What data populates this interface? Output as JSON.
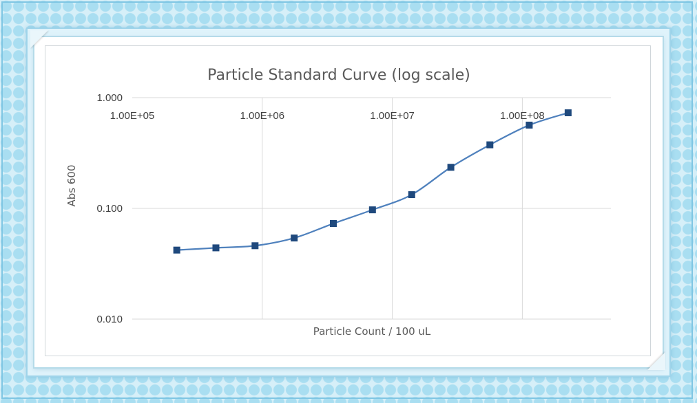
{
  "chart_data": {
    "type": "line",
    "title": "Particle Standard Curve  (log scale)",
    "xlabel": "Particle Count / 100 uL",
    "ylabel": "Abs 600",
    "x_scale": "log",
    "y_scale": "log",
    "xlim": [
      100000,
      480000000
    ],
    "ylim": [
      0.01,
      1.0
    ],
    "x_ticks": [
      100000,
      1000000,
      10000000,
      100000000
    ],
    "x_tick_labels": [
      "1.00E+05",
      "1.00E+06",
      "1.00E+07",
      "1.00E+08"
    ],
    "x_tick_position": "top",
    "y_ticks": [
      0.01,
      0.1,
      1.0
    ],
    "y_tick_labels": [
      "0.010",
      "0.100",
      "1.000"
    ],
    "grid": true,
    "legend": "none",
    "colors": {
      "line": "#4f81bd",
      "marker": "#1f497d",
      "grid": "#d9d9d9"
    },
    "series": [
      {
        "x": [
          220000,
          440000,
          880000,
          1760000,
          3520000,
          7040000,
          14100000,
          28200000,
          56300000,
          113000000,
          225000000
        ],
        "y": [
          0.042,
          0.044,
          0.046,
          0.054,
          0.073,
          0.097,
          0.133,
          0.235,
          0.375,
          0.565,
          0.73
        ]
      }
    ]
  }
}
